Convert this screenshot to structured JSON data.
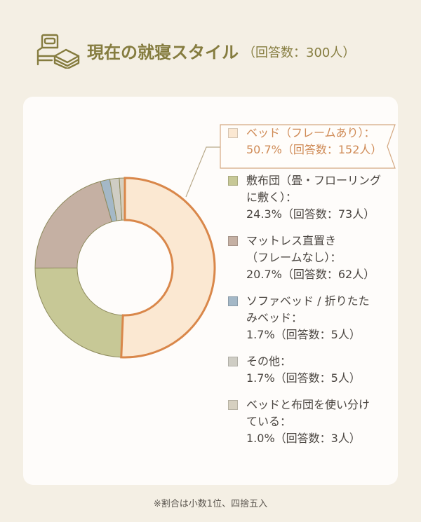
{
  "header": {
    "icon": "bed-and-futon-icon",
    "title": "現在の就寝スタイル",
    "subtitle": "（回答数：300人）"
  },
  "legend": {
    "items": [
      {
        "label_lines": [
          "ベッド（フレームあり）：",
          "50.7%（回答数：152人）"
        ],
        "color": "#fbe8d2",
        "highlight": true
      },
      {
        "label_lines": [
          "敷布団（畳・フローリング",
          "に敷く）：",
          "24.3%（回答数：73人）"
        ],
        "color": "#c7c896",
        "highlight": false
      },
      {
        "label_lines": [
          "マットレス直置き",
          "（フレームなし）：",
          "20.7%（回答数：62人）"
        ],
        "color": "#c5b0a3",
        "highlight": false
      },
      {
        "label_lines": [
          "ソファベッド / 折りたた",
          "みベッド：",
          "1.7%（回答数：5人）"
        ],
        "color": "#a4b8c7",
        "highlight": false
      },
      {
        "label_lines": [
          "その他：",
          "1.7%（回答数：5人）"
        ],
        "color": "#cfcdc4",
        "highlight": false
      },
      {
        "label_lines": [
          "ベッドと布団を使い分け",
          "ている：",
          "1.0%（回答数：3人）"
        ],
        "color": "#d6d0c0",
        "highlight": false
      }
    ]
  },
  "footnote": "※割合は小数1位、四捨五入",
  "chart_data": {
    "type": "pie",
    "variant": "donut",
    "title": "現在の就寝スタイル（回答数：300人）",
    "categories": [
      "ベッド（フレームあり）",
      "敷布団（畳・フローリングに敷く）",
      "マットレス直置き（フレームなし）",
      "ソファベッド / 折りたたみベッド",
      "その他",
      "ベッドと布団を使い分けている"
    ],
    "values": [
      50.7,
      24.3,
      20.7,
      1.7,
      1.7,
      1.0
    ],
    "counts": [
      152,
      73,
      62,
      5,
      5,
      3
    ],
    "unit": "%",
    "total_respondents": 300,
    "colors": [
      "#fbe8d2",
      "#c7c896",
      "#c5b0a3",
      "#a4b8c7",
      "#cfcdc4",
      "#d6d0c0"
    ],
    "highlight_index": 0,
    "highlight_stroke": "#d9874a",
    "start_angle": "12 o'clock, clockwise",
    "legend_position": "right",
    "note": "※割合は小数1位、四捨五入"
  }
}
